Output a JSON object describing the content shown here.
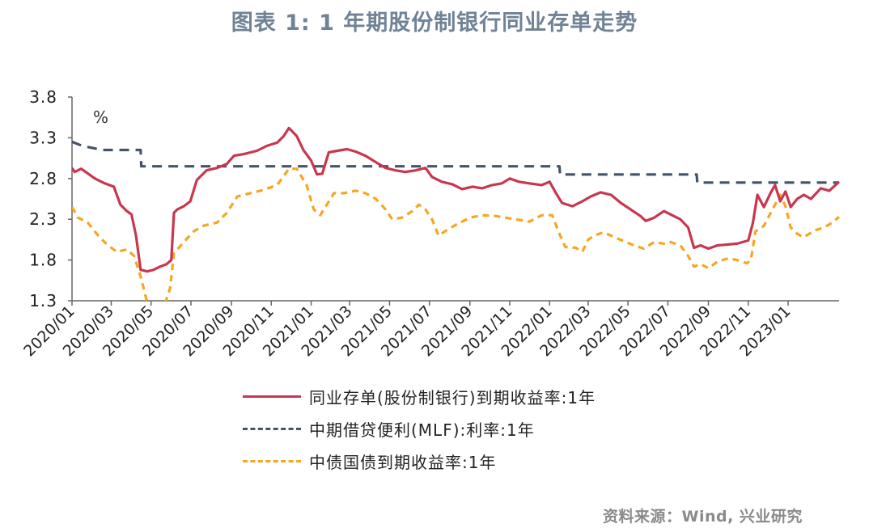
{
  "title": "图表 1:  1 年期股份制银行同业存单走势",
  "source": "资料来源：Wind, 兴业研究",
  "chart_data": {
    "type": "line",
    "ylim": [
      1.3,
      3.8
    ],
    "yticks": [
      "3.8",
      "3.3",
      "2.8",
      "2.3",
      "1.8",
      "1.3"
    ],
    "unit_label": "%",
    "xlim": [
      "2020-01-01",
      "2023-03-20"
    ],
    "xticks": [
      {
        "date": "2020-01-01",
        "label": "2020/01"
      },
      {
        "date": "2020-03-01",
        "label": "2020/03"
      },
      {
        "date": "2020-05-01",
        "label": "2020/05"
      },
      {
        "date": "2020-07-01",
        "label": "2020/07"
      },
      {
        "date": "2020-09-01",
        "label": "2020/09"
      },
      {
        "date": "2020-11-01",
        "label": "2020/11"
      },
      {
        "date": "2021-01-01",
        "label": "2021/01"
      },
      {
        "date": "2021-03-01",
        "label": "2021/03"
      },
      {
        "date": "2021-05-01",
        "label": "2021/05"
      },
      {
        "date": "2021-07-01",
        "label": "2021/07"
      },
      {
        "date": "2021-09-01",
        "label": "2021/09"
      },
      {
        "date": "2021-11-01",
        "label": "2021/11"
      },
      {
        "date": "2022-01-01",
        "label": "2022/01"
      },
      {
        "date": "2022-03-01",
        "label": "2022/03"
      },
      {
        "date": "2022-05-01",
        "label": "2022/05"
      },
      {
        "date": "2022-07-01",
        "label": "2022/07"
      },
      {
        "date": "2022-09-01",
        "label": "2022/09"
      },
      {
        "date": "2022-11-01",
        "label": "2022/11"
      },
      {
        "date": "2023-01-01",
        "label": "2023/01"
      }
    ],
    "series": [
      {
        "name": "同业存单(股份制银行)到期收益率:1年",
        "color": "#c8374f",
        "style": "solid",
        "points": [
          [
            "2020-01-01",
            2.93
          ],
          [
            "2020-01-05",
            2.88
          ],
          [
            "2020-01-15",
            2.92
          ],
          [
            "2020-02-05",
            2.8
          ],
          [
            "2020-02-20",
            2.74
          ],
          [
            "2020-03-05",
            2.7
          ],
          [
            "2020-03-15",
            2.48
          ],
          [
            "2020-03-25",
            2.4
          ],
          [
            "2020-04-01",
            2.36
          ],
          [
            "2020-04-08",
            2.1
          ],
          [
            "2020-04-15",
            1.68
          ],
          [
            "2020-04-25",
            1.66
          ],
          [
            "2020-05-05",
            1.68
          ],
          [
            "2020-05-15",
            1.72
          ],
          [
            "2020-05-25",
            1.75
          ],
          [
            "2020-06-01",
            1.8
          ],
          [
            "2020-06-05",
            2.38
          ],
          [
            "2020-06-10",
            2.42
          ],
          [
            "2020-06-20",
            2.46
          ],
          [
            "2020-06-30",
            2.52
          ],
          [
            "2020-07-10",
            2.78
          ],
          [
            "2020-07-25",
            2.9
          ],
          [
            "2020-08-10",
            2.93
          ],
          [
            "2020-08-25",
            2.98
          ],
          [
            "2020-09-05",
            3.08
          ],
          [
            "2020-09-20",
            3.1
          ],
          [
            "2020-10-10",
            3.14
          ],
          [
            "2020-10-25",
            3.2
          ],
          [
            "2020-11-10",
            3.24
          ],
          [
            "2020-11-20",
            3.32
          ],
          [
            "2020-11-28",
            3.42
          ],
          [
            "2020-12-10",
            3.32
          ],
          [
            "2020-12-20",
            3.15
          ],
          [
            "2021-01-01",
            3.02
          ],
          [
            "2021-01-10",
            2.85
          ],
          [
            "2021-01-18",
            2.86
          ],
          [
            "2021-01-28",
            3.12
          ],
          [
            "2021-02-10",
            3.14
          ],
          [
            "2021-02-25",
            3.16
          ],
          [
            "2021-03-10",
            3.13
          ],
          [
            "2021-03-25",
            3.08
          ],
          [
            "2021-04-10",
            3.0
          ],
          [
            "2021-04-25",
            2.93
          ],
          [
            "2021-05-10",
            2.9
          ],
          [
            "2021-05-25",
            2.88
          ],
          [
            "2021-06-10",
            2.9
          ],
          [
            "2021-06-25",
            2.93
          ],
          [
            "2021-07-05",
            2.82
          ],
          [
            "2021-07-20",
            2.76
          ],
          [
            "2021-08-05",
            2.73
          ],
          [
            "2021-08-20",
            2.67
          ],
          [
            "2021-09-05",
            2.7
          ],
          [
            "2021-09-20",
            2.68
          ],
          [
            "2021-10-05",
            2.72
          ],
          [
            "2021-10-20",
            2.74
          ],
          [
            "2021-11-01",
            2.8
          ],
          [
            "2021-11-15",
            2.76
          ],
          [
            "2021-12-01",
            2.74
          ],
          [
            "2021-12-20",
            2.72
          ],
          [
            "2022-01-01",
            2.76
          ],
          [
            "2022-01-10",
            2.63
          ],
          [
            "2022-01-20",
            2.5
          ],
          [
            "2022-02-05",
            2.46
          ],
          [
            "2022-02-20",
            2.52
          ],
          [
            "2022-03-05",
            2.58
          ],
          [
            "2022-03-20",
            2.63
          ],
          [
            "2022-04-05",
            2.6
          ],
          [
            "2022-04-20",
            2.5
          ],
          [
            "2022-05-05",
            2.42
          ],
          [
            "2022-05-20",
            2.34
          ],
          [
            "2022-05-28",
            2.28
          ],
          [
            "2022-06-10",
            2.32
          ],
          [
            "2022-06-25",
            2.4
          ],
          [
            "2022-07-05",
            2.36
          ],
          [
            "2022-07-20",
            2.3
          ],
          [
            "2022-08-01",
            2.2
          ],
          [
            "2022-08-10",
            1.95
          ],
          [
            "2022-08-20",
            1.98
          ],
          [
            "2022-09-01",
            1.94
          ],
          [
            "2022-09-15",
            1.98
          ],
          [
            "2022-10-01",
            1.99
          ],
          [
            "2022-10-15",
            2.0
          ],
          [
            "2022-11-01",
            2.04
          ],
          [
            "2022-11-08",
            2.25
          ],
          [
            "2022-11-15",
            2.6
          ],
          [
            "2022-11-25",
            2.45
          ],
          [
            "2022-12-05",
            2.62
          ],
          [
            "2022-12-12",
            2.72
          ],
          [
            "2022-12-20",
            2.52
          ],
          [
            "2022-12-28",
            2.64
          ],
          [
            "2023-01-05",
            2.45
          ],
          [
            "2023-01-15",
            2.55
          ],
          [
            "2023-01-25",
            2.6
          ],
          [
            "2023-02-05",
            2.55
          ],
          [
            "2023-02-20",
            2.68
          ],
          [
            "2023-03-05",
            2.65
          ],
          [
            "2023-03-20",
            2.76
          ]
        ]
      },
      {
        "name": "中期借贷便利(MLF):利率:1年",
        "color": "#44546a",
        "style": "dashed",
        "points": [
          [
            "2020-01-01",
            3.25
          ],
          [
            "2020-01-17",
            3.2
          ],
          [
            "2020-02-17",
            3.15
          ],
          [
            "2020-04-15",
            3.15
          ],
          [
            "2020-04-16",
            2.95
          ],
          [
            "2022-01-16",
            2.95
          ],
          [
            "2022-01-17",
            2.85
          ],
          [
            "2022-08-14",
            2.85
          ],
          [
            "2022-08-15",
            2.75
          ],
          [
            "2023-03-20",
            2.75
          ]
        ]
      },
      {
        "name": "中债国债到期收益率:1年",
        "color": "#f5a623",
        "style": "dashed",
        "points": [
          [
            "2020-01-01",
            2.45
          ],
          [
            "2020-01-10",
            2.32
          ],
          [
            "2020-01-25",
            2.26
          ],
          [
            "2020-02-10",
            2.1
          ],
          [
            "2020-02-25",
            1.98
          ],
          [
            "2020-03-10",
            1.9
          ],
          [
            "2020-03-25",
            1.93
          ],
          [
            "2020-04-05",
            1.85
          ],
          [
            "2020-04-15",
            1.6
          ],
          [
            "2020-04-25",
            1.28
          ],
          [
            "2020-05-10",
            1.0
          ],
          [
            "2020-05-20",
            1.2
          ],
          [
            "2020-05-30",
            1.45
          ],
          [
            "2020-06-05",
            1.88
          ],
          [
            "2020-06-20",
            2.02
          ],
          [
            "2020-07-05",
            2.15
          ],
          [
            "2020-07-20",
            2.22
          ],
          [
            "2020-08-10",
            2.26
          ],
          [
            "2020-08-25",
            2.38
          ],
          [
            "2020-09-10",
            2.58
          ],
          [
            "2020-09-30",
            2.62
          ],
          [
            "2020-10-20",
            2.66
          ],
          [
            "2020-11-10",
            2.72
          ],
          [
            "2020-11-28",
            2.92
          ],
          [
            "2020-12-10",
            2.92
          ],
          [
            "2020-12-25",
            2.72
          ],
          [
            "2021-01-05",
            2.42
          ],
          [
            "2021-01-15",
            2.35
          ],
          [
            "2021-02-05",
            2.62
          ],
          [
            "2021-02-20",
            2.62
          ],
          [
            "2021-03-10",
            2.65
          ],
          [
            "2021-03-25",
            2.62
          ],
          [
            "2021-04-10",
            2.55
          ],
          [
            "2021-04-25",
            2.42
          ],
          [
            "2021-05-05",
            2.3
          ],
          [
            "2021-05-20",
            2.32
          ],
          [
            "2021-06-05",
            2.4
          ],
          [
            "2021-06-15",
            2.48
          ],
          [
            "2021-06-25",
            2.42
          ],
          [
            "2021-07-05",
            2.3
          ],
          [
            "2021-07-15",
            2.1
          ],
          [
            "2021-07-30",
            2.18
          ],
          [
            "2021-08-15",
            2.25
          ],
          [
            "2021-09-01",
            2.32
          ],
          [
            "2021-09-20",
            2.35
          ],
          [
            "2021-10-10",
            2.34
          ],
          [
            "2021-10-25",
            2.32
          ],
          [
            "2021-11-10",
            2.3
          ],
          [
            "2021-12-01",
            2.27
          ],
          [
            "2021-12-20",
            2.35
          ],
          [
            "2022-01-05",
            2.35
          ],
          [
            "2022-01-15",
            2.14
          ],
          [
            "2022-01-25",
            1.96
          ],
          [
            "2022-02-10",
            1.95
          ],
          [
            "2022-02-20",
            1.9
          ],
          [
            "2022-03-01",
            2.05
          ],
          [
            "2022-03-10",
            2.1
          ],
          [
            "2022-03-25",
            2.14
          ],
          [
            "2022-04-10",
            2.08
          ],
          [
            "2022-04-25",
            2.03
          ],
          [
            "2022-05-10",
            1.98
          ],
          [
            "2022-05-25",
            1.94
          ],
          [
            "2022-06-10",
            2.02
          ],
          [
            "2022-06-25",
            2.0
          ],
          [
            "2022-07-05",
            2.02
          ],
          [
            "2022-07-20",
            1.98
          ],
          [
            "2022-08-01",
            1.85
          ],
          [
            "2022-08-10",
            1.72
          ],
          [
            "2022-08-20",
            1.75
          ],
          [
            "2022-09-01",
            1.7
          ],
          [
            "2022-09-15",
            1.78
          ],
          [
            "2022-10-01",
            1.82
          ],
          [
            "2022-10-15",
            1.8
          ],
          [
            "2022-10-30",
            1.76
          ],
          [
            "2022-11-05",
            1.8
          ],
          [
            "2022-11-12",
            2.15
          ],
          [
            "2022-11-25",
            2.22
          ],
          [
            "2022-12-10",
            2.45
          ],
          [
            "2022-12-20",
            2.6
          ],
          [
            "2022-12-28",
            2.46
          ],
          [
            "2023-01-05",
            2.2
          ],
          [
            "2023-01-15",
            2.12
          ],
          [
            "2023-01-25",
            2.08
          ],
          [
            "2023-02-10",
            2.16
          ],
          [
            "2023-02-25",
            2.2
          ],
          [
            "2023-03-10",
            2.26
          ],
          [
            "2023-03-20",
            2.33
          ]
        ]
      }
    ]
  }
}
